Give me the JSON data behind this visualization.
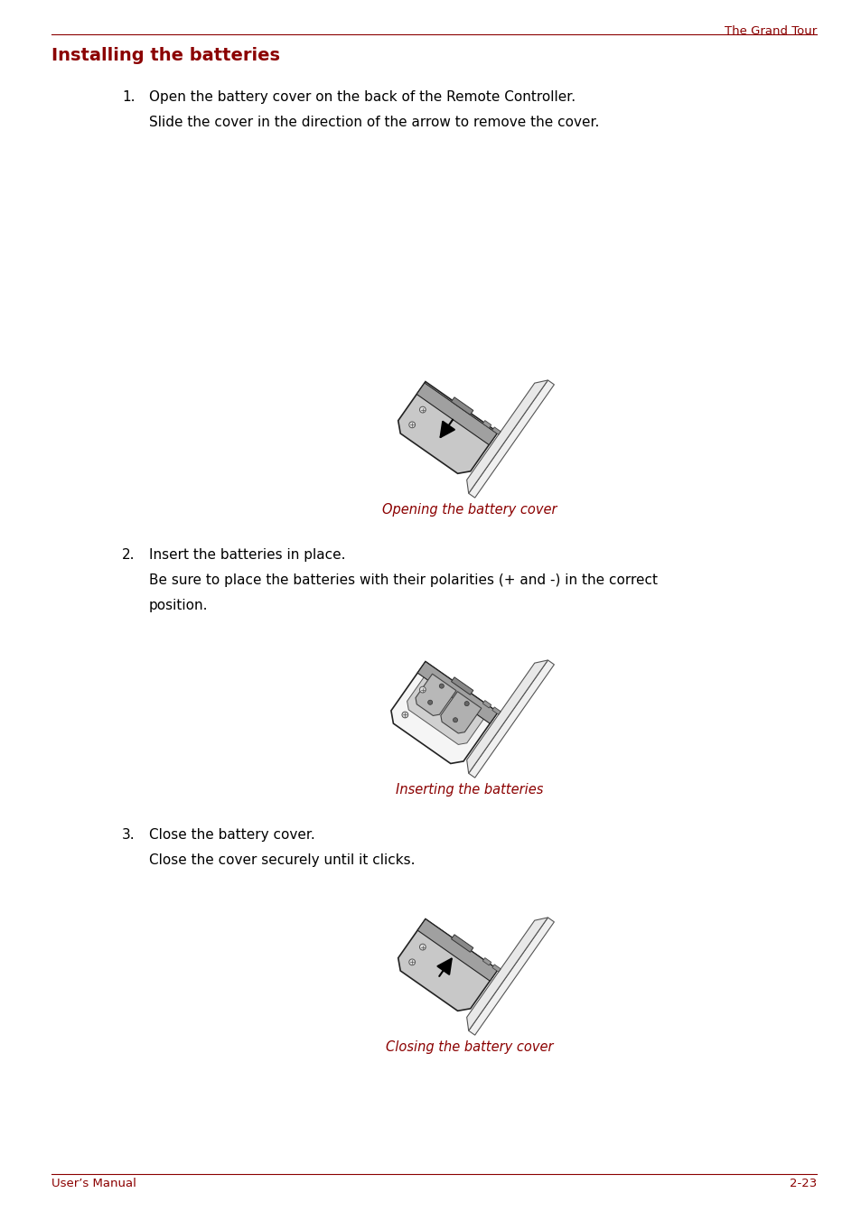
{
  "background_color": "#ffffff",
  "page_width": 9.54,
  "page_height": 13.52,
  "dpi": 100,
  "header_text": "The Grand Tour",
  "header_color": "#8B0000",
  "header_line_color": "#8B0000",
  "footer_text_left": "User’s Manual",
  "footer_text_right": "2-23",
  "footer_color": "#8B0000",
  "title": "Installing the batteries",
  "title_color": "#8B0000",
  "title_fontsize": 14,
  "body_color": "#000000",
  "body_fontsize": 11,
  "step1_line1": "Open the battery cover on the back of the Remote Controller.",
  "step1_line2": "Slide the cover in the direction of the arrow to remove the cover.",
  "step1_caption": "Opening the battery cover",
  "step2_line1": "Insert the batteries in place.",
  "step2_line2": "Be sure to place the batteries with their polarities (+ and -) in the correct",
  "step2_line3": "position.",
  "step2_caption": "Inserting the batteries",
  "step3_line1": "Close the battery cover.",
  "step3_line2": "Close the cover securely until it clicks.",
  "step3_caption": "Closing the battery cover",
  "caption_color": "#8B0000",
  "caption_fontsize": 10.5
}
